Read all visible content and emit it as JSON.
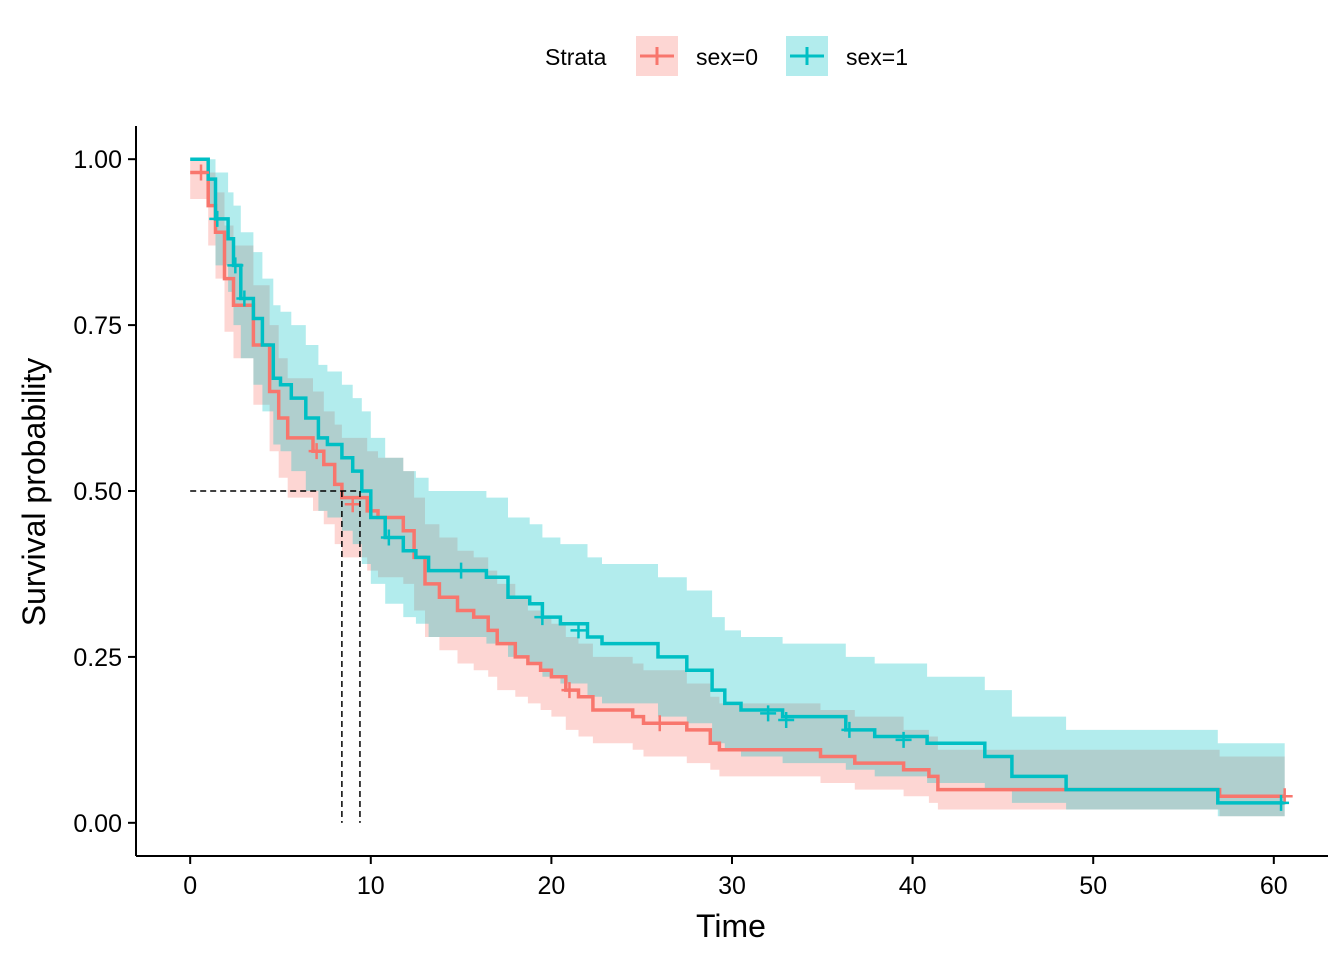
{
  "chart_data": {
    "type": "line",
    "subtype": "kaplan-meier survival curve with confidence bands",
    "xlabel": "Time",
    "ylabel": "Survival probability",
    "xlim": [
      -3,
      63
    ],
    "ylim": [
      -0.05,
      1.05
    ],
    "x_ticks": [
      0,
      10,
      20,
      30,
      40,
      50,
      60
    ],
    "y_ticks": [
      0.0,
      0.25,
      0.5,
      0.75,
      1.0
    ],
    "x_tick_labels": [
      "0",
      "10",
      "20",
      "30",
      "40",
      "50",
      "60"
    ],
    "y_tick_labels": [
      "0.00",
      "0.25",
      "0.50",
      "0.75",
      "1.00"
    ],
    "grid": false,
    "legend": {
      "title": "Strata",
      "position": "top",
      "entries": [
        "sex=0",
        "sex=1"
      ]
    },
    "median_survival": [
      {
        "series": "sex=0",
        "time": 8.4
      },
      {
        "series": "sex=1",
        "time": 9.4
      }
    ],
    "series": [
      {
        "name": "sex=0",
        "color": "#F8766D",
        "fill": "#F8766D",
        "steps": [
          [
            0,
            0.98
          ],
          [
            1.0,
            0.93
          ],
          [
            1.4,
            0.89
          ],
          [
            1.9,
            0.82
          ],
          [
            2.4,
            0.78
          ],
          [
            3.5,
            0.72
          ],
          [
            4.4,
            0.65
          ],
          [
            4.9,
            0.61
          ],
          [
            5.4,
            0.58
          ],
          [
            6.8,
            0.56
          ],
          [
            7.4,
            0.54
          ],
          [
            8.0,
            0.51
          ],
          [
            8.4,
            0.49
          ],
          [
            9.8,
            0.47
          ],
          [
            10.4,
            0.46
          ],
          [
            11.8,
            0.44
          ],
          [
            12.4,
            0.4
          ],
          [
            13.0,
            0.36
          ],
          [
            13.8,
            0.34
          ],
          [
            14.8,
            0.32
          ],
          [
            15.7,
            0.31
          ],
          [
            16.5,
            0.29
          ],
          [
            17.0,
            0.27
          ],
          [
            18.0,
            0.25
          ],
          [
            18.7,
            0.24
          ],
          [
            19.4,
            0.23
          ],
          [
            20.0,
            0.22
          ],
          [
            20.8,
            0.2
          ],
          [
            21.5,
            0.19
          ],
          [
            22.3,
            0.17
          ],
          [
            24.5,
            0.16
          ],
          [
            25.1,
            0.15
          ],
          [
            27.5,
            0.14
          ],
          [
            28.8,
            0.12
          ],
          [
            29.3,
            0.11
          ],
          [
            34.9,
            0.1
          ],
          [
            36.8,
            0.09
          ],
          [
            39.5,
            0.08
          ],
          [
            40.9,
            0.07
          ],
          [
            41.4,
            0.05
          ],
          [
            57.0,
            0.04
          ],
          [
            60.6,
            0.04
          ]
        ],
        "ci_upper": [
          [
            0,
            1.0
          ],
          [
            1.0,
            0.98
          ],
          [
            1.4,
            0.95
          ],
          [
            1.9,
            0.9
          ],
          [
            2.4,
            0.87
          ],
          [
            3.5,
            0.81
          ],
          [
            4.4,
            0.75
          ],
          [
            4.9,
            0.7
          ],
          [
            5.4,
            0.67
          ],
          [
            6.8,
            0.65
          ],
          [
            7.4,
            0.62
          ],
          [
            8.0,
            0.6
          ],
          [
            8.4,
            0.58
          ],
          [
            9.8,
            0.56
          ],
          [
            10.4,
            0.55
          ],
          [
            11.8,
            0.53
          ],
          [
            12.4,
            0.49
          ],
          [
            13.0,
            0.45
          ],
          [
            13.8,
            0.43
          ],
          [
            14.8,
            0.41
          ],
          [
            15.7,
            0.4
          ],
          [
            16.5,
            0.38
          ],
          [
            17.0,
            0.36
          ],
          [
            18.0,
            0.34
          ],
          [
            18.7,
            0.32
          ],
          [
            19.4,
            0.31
          ],
          [
            20.0,
            0.3
          ],
          [
            20.8,
            0.28
          ],
          [
            21.5,
            0.27
          ],
          [
            22.3,
            0.25
          ],
          [
            24.5,
            0.24
          ],
          [
            25.1,
            0.23
          ],
          [
            27.5,
            0.21
          ],
          [
            28.8,
            0.19
          ],
          [
            29.3,
            0.18
          ],
          [
            34.9,
            0.17
          ],
          [
            36.8,
            0.16
          ],
          [
            39.5,
            0.14
          ],
          [
            40.9,
            0.13
          ],
          [
            41.4,
            0.11
          ],
          [
            57.0,
            0.1
          ],
          [
            60.6,
            0.1
          ]
        ],
        "ci_lower": [
          [
            0,
            0.94
          ],
          [
            1.0,
            0.87
          ],
          [
            1.4,
            0.82
          ],
          [
            1.9,
            0.74
          ],
          [
            2.4,
            0.7
          ],
          [
            3.5,
            0.63
          ],
          [
            4.4,
            0.56
          ],
          [
            4.9,
            0.52
          ],
          [
            5.4,
            0.49
          ],
          [
            6.8,
            0.47
          ],
          [
            7.4,
            0.45
          ],
          [
            8.0,
            0.42
          ],
          [
            8.4,
            0.4
          ],
          [
            9.8,
            0.38
          ],
          [
            10.4,
            0.37
          ],
          [
            11.8,
            0.36
          ],
          [
            12.4,
            0.32
          ],
          [
            13.0,
            0.28
          ],
          [
            13.8,
            0.26
          ],
          [
            14.8,
            0.24
          ],
          [
            15.7,
            0.23
          ],
          [
            16.5,
            0.22
          ],
          [
            17.0,
            0.2
          ],
          [
            18.0,
            0.19
          ],
          [
            18.7,
            0.18
          ],
          [
            19.4,
            0.17
          ],
          [
            20.0,
            0.16
          ],
          [
            20.8,
            0.14
          ],
          [
            21.5,
            0.13
          ],
          [
            22.3,
            0.12
          ],
          [
            24.5,
            0.11
          ],
          [
            25.1,
            0.1
          ],
          [
            27.5,
            0.09
          ],
          [
            28.8,
            0.08
          ],
          [
            29.3,
            0.07
          ],
          [
            34.9,
            0.06
          ],
          [
            36.8,
            0.05
          ],
          [
            39.5,
            0.04
          ],
          [
            40.9,
            0.03
          ],
          [
            41.4,
            0.02
          ],
          [
            57.0,
            0.01
          ],
          [
            60.6,
            0.01
          ]
        ],
        "censored": [
          [
            0.6,
            0.98
          ],
          [
            7.0,
            0.56
          ],
          [
            9.0,
            0.48
          ],
          [
            21.0,
            0.2
          ],
          [
            26.0,
            0.15
          ],
          [
            60.6,
            0.04
          ]
        ]
      },
      {
        "name": "sex=1",
        "color": "#00BFC4",
        "fill": "#00BFC4",
        "steps": [
          [
            0,
            1.0
          ],
          [
            1.0,
            0.97
          ],
          [
            1.4,
            0.91
          ],
          [
            2.1,
            0.88
          ],
          [
            2.4,
            0.84
          ],
          [
            2.8,
            0.79
          ],
          [
            3.5,
            0.76
          ],
          [
            4.0,
            0.72
          ],
          [
            4.6,
            0.67
          ],
          [
            5.0,
            0.66
          ],
          [
            5.6,
            0.64
          ],
          [
            6.4,
            0.61
          ],
          [
            7.1,
            0.58
          ],
          [
            7.6,
            0.57
          ],
          [
            8.4,
            0.55
          ],
          [
            9.0,
            0.53
          ],
          [
            9.5,
            0.5
          ],
          [
            10.0,
            0.46
          ],
          [
            10.8,
            0.43
          ],
          [
            11.8,
            0.41
          ],
          [
            12.5,
            0.4
          ],
          [
            13.2,
            0.38
          ],
          [
            14.6,
            0.38
          ],
          [
            16.4,
            0.37
          ],
          [
            17.6,
            0.34
          ],
          [
            18.8,
            0.33
          ],
          [
            19.5,
            0.31
          ],
          [
            20.5,
            0.3
          ],
          [
            22.0,
            0.28
          ],
          [
            22.8,
            0.27
          ],
          [
            25.0,
            0.27
          ],
          [
            25.9,
            0.25
          ],
          [
            27.5,
            0.23
          ],
          [
            28.9,
            0.2
          ],
          [
            29.6,
            0.18
          ],
          [
            30.5,
            0.17
          ],
          [
            32.8,
            0.16
          ],
          [
            36.3,
            0.14
          ],
          [
            37.9,
            0.13
          ],
          [
            39.8,
            0.13
          ],
          [
            40.8,
            0.12
          ],
          [
            44.0,
            0.1
          ],
          [
            45.5,
            0.07
          ],
          [
            48.5,
            0.05
          ],
          [
            56.9,
            0.03
          ],
          [
            60.6,
            0.03
          ]
        ],
        "ci_upper": [
          [
            0,
            1.0
          ],
          [
            1.0,
            1.0
          ],
          [
            1.4,
            0.98
          ],
          [
            2.1,
            0.95
          ],
          [
            2.4,
            0.93
          ],
          [
            2.8,
            0.89
          ],
          [
            3.5,
            0.86
          ],
          [
            4.0,
            0.82
          ],
          [
            4.6,
            0.78
          ],
          [
            5.0,
            0.77
          ],
          [
            5.6,
            0.75
          ],
          [
            6.4,
            0.72
          ],
          [
            7.1,
            0.69
          ],
          [
            7.6,
            0.68
          ],
          [
            8.4,
            0.66
          ],
          [
            9.0,
            0.64
          ],
          [
            9.5,
            0.62
          ],
          [
            10.0,
            0.58
          ],
          [
            10.8,
            0.55
          ],
          [
            11.8,
            0.53
          ],
          [
            12.5,
            0.52
          ],
          [
            13.2,
            0.5
          ],
          [
            14.6,
            0.5
          ],
          [
            16.4,
            0.49
          ],
          [
            17.6,
            0.46
          ],
          [
            18.8,
            0.45
          ],
          [
            19.5,
            0.43
          ],
          [
            20.5,
            0.42
          ],
          [
            22.0,
            0.4
          ],
          [
            22.8,
            0.39
          ],
          [
            25.0,
            0.39
          ],
          [
            25.9,
            0.37
          ],
          [
            27.5,
            0.35
          ],
          [
            28.9,
            0.31
          ],
          [
            29.6,
            0.29
          ],
          [
            30.5,
            0.28
          ],
          [
            32.8,
            0.27
          ],
          [
            36.3,
            0.25
          ],
          [
            37.9,
            0.24
          ],
          [
            39.8,
            0.24
          ],
          [
            40.8,
            0.22
          ],
          [
            44.0,
            0.2
          ],
          [
            45.5,
            0.16
          ],
          [
            48.5,
            0.14
          ],
          [
            56.9,
            0.12
          ],
          [
            60.6,
            0.12
          ]
        ],
        "ci_lower": [
          [
            0,
            1.0
          ],
          [
            1.0,
            0.93
          ],
          [
            1.4,
            0.84
          ],
          [
            2.1,
            0.8
          ],
          [
            2.4,
            0.75
          ],
          [
            2.8,
            0.7
          ],
          [
            3.5,
            0.66
          ],
          [
            4.0,
            0.62
          ],
          [
            4.6,
            0.57
          ],
          [
            5.0,
            0.56
          ],
          [
            5.6,
            0.53
          ],
          [
            6.4,
            0.5
          ],
          [
            7.1,
            0.47
          ],
          [
            7.6,
            0.46
          ],
          [
            8.4,
            0.44
          ],
          [
            9.0,
            0.42
          ],
          [
            9.5,
            0.39
          ],
          [
            10.0,
            0.36
          ],
          [
            10.8,
            0.33
          ],
          [
            11.8,
            0.31
          ],
          [
            12.5,
            0.3
          ],
          [
            13.2,
            0.28
          ],
          [
            14.6,
            0.28
          ],
          [
            16.4,
            0.27
          ],
          [
            17.6,
            0.25
          ],
          [
            18.8,
            0.24
          ],
          [
            19.5,
            0.22
          ],
          [
            20.5,
            0.21
          ],
          [
            22.0,
            0.19
          ],
          [
            22.8,
            0.18
          ],
          [
            25.0,
            0.18
          ],
          [
            25.9,
            0.16
          ],
          [
            27.5,
            0.15
          ],
          [
            28.9,
            0.12
          ],
          [
            29.6,
            0.11
          ],
          [
            30.5,
            0.1
          ],
          [
            32.8,
            0.09
          ],
          [
            36.3,
            0.08
          ],
          [
            37.9,
            0.07
          ],
          [
            39.8,
            0.07
          ],
          [
            40.8,
            0.06
          ],
          [
            44.0,
            0.05
          ],
          [
            45.5,
            0.03
          ],
          [
            48.5,
            0.02
          ],
          [
            56.9,
            0.01
          ],
          [
            60.6,
            0.01
          ]
        ],
        "censored": [
          [
            1.5,
            0.91
          ],
          [
            2.5,
            0.84
          ],
          [
            3.0,
            0.79
          ],
          [
            11.0,
            0.43
          ],
          [
            15.0,
            0.38
          ],
          [
            19.5,
            0.31
          ],
          [
            21.5,
            0.29
          ],
          [
            32.0,
            0.165
          ],
          [
            33.0,
            0.155
          ],
          [
            36.5,
            0.14
          ],
          [
            39.5,
            0.125
          ],
          [
            60.4,
            0.03
          ]
        ]
      }
    ]
  }
}
